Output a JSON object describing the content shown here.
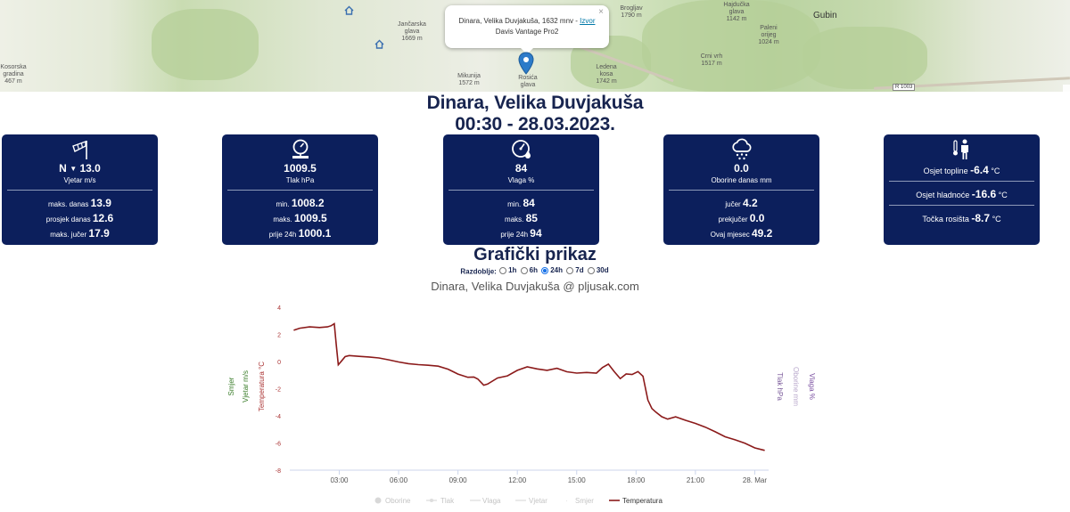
{
  "map": {
    "places": [
      {
        "name": "Jančarska",
        "extra": "glava",
        "elev": "1669 m"
      },
      {
        "name": "Mikunija",
        "extra": "",
        "elev": "1572 m"
      },
      {
        "name": "Rosića",
        "extra": "glava",
        "elev": ""
      },
      {
        "name": "Ledena",
        "extra": "kosa",
        "elev": "1742 m"
      },
      {
        "name": "Brogljav",
        "extra": "",
        "elev": "1790 m"
      },
      {
        "name": "Hajdučka",
        "extra": "glava",
        "elev": "1142 m"
      },
      {
        "name": "Paleni",
        "extra": "orijeg",
        "elev": "1024 m"
      },
      {
        "name": "Crni vrh",
        "extra": "",
        "elev": "1517 m"
      },
      {
        "name": "Kosorska",
        "extra": "gradina",
        "elev": "467 m"
      }
    ],
    "town": "Gubin",
    "road_sign": "R 1003",
    "elev_small": "1674 m",
    "popup": {
      "line1": "Dinara, Velika Duvjakuša, 1632 mnv - ",
      "link": "Izvor",
      "line2": "Davis Vantage Pro2",
      "close": "×"
    }
  },
  "station": {
    "name": "Dinara, Velika Duvjakuša",
    "datetime": "00:30 - 28.03.2023."
  },
  "cards": {
    "wind": {
      "direction": "N",
      "value": "13.0",
      "label": "Vjetar m/s",
      "rows": [
        {
          "label": "maks. danas",
          "value": "13.9"
        },
        {
          "label": "prosjek danas",
          "value": "12.6"
        },
        {
          "label": "maks. jučer",
          "value": "17.9"
        }
      ]
    },
    "pressure": {
      "value": "1009.5",
      "label": "Tlak hPa",
      "rows": [
        {
          "label": "min.",
          "value": "1008.2"
        },
        {
          "label": "maks.",
          "value": "1009.5"
        },
        {
          "label": "prije 24h",
          "value": "1000.1"
        }
      ]
    },
    "humidity": {
      "value": "84",
      "label": "Vlaga %",
      "rows": [
        {
          "label": "min.",
          "value": "84"
        },
        {
          "label": "maks.",
          "value": "85"
        },
        {
          "label": "prije 24h",
          "value": "94"
        }
      ]
    },
    "rain": {
      "value": "0.0",
      "label": "Oborine danas mm",
      "rows": [
        {
          "label": "jučer",
          "value": "4.2"
        },
        {
          "label": "prekjučer",
          "value": "0.0"
        },
        {
          "label": "Ovaj mjesec",
          "value": "49.2"
        }
      ]
    },
    "feel": {
      "rows": [
        {
          "label": "Osjet topline",
          "value": "-6.4",
          "unit": "°C"
        },
        {
          "label": "Osjet hladnoće",
          "value": "-16.6",
          "unit": "°C"
        },
        {
          "label": "Točka rosišta",
          "value": "-8.7",
          "unit": "°C"
        }
      ]
    }
  },
  "graph_section": {
    "heading": "Grafički prikaz",
    "period_label": "Razdoblje:",
    "period_options": [
      "1h",
      "6h",
      "24h",
      "7d",
      "30d"
    ],
    "period_selected": "24h"
  },
  "chart_data": {
    "type": "line",
    "title": "Dinara, Velika Duvjakuša @ pljusak.com",
    "ylabel_left": [
      "Smjer",
      "Vjetar m/s",
      "Temperatura °C"
    ],
    "ylabel_right": [
      "Tlak hPa",
      "Oborine mm",
      "Vlaga %"
    ],
    "yticks": [
      "4",
      "2",
      "0",
      "-2",
      "-4",
      "-6",
      "-8"
    ],
    "ylim": [
      -8,
      4
    ],
    "xlim": [
      0.5,
      24.7
    ],
    "xticks": [
      {
        "x": 3,
        "label": "03:00"
      },
      {
        "x": 6,
        "label": "06:00"
      },
      {
        "x": 9,
        "label": "09:00"
      },
      {
        "x": 12,
        "label": "12:00"
      },
      {
        "x": 15,
        "label": "15:00"
      },
      {
        "x": 18,
        "label": "18:00"
      },
      {
        "x": 21,
        "label": "21:00"
      },
      {
        "x": 24,
        "label": "28. Mar"
      }
    ],
    "legend": [
      "Oborine",
      "Tlak",
      "Vlaga",
      "Vjetar",
      "Smjer",
      "Temperatura"
    ],
    "colors": {
      "temperature": "#8b1a1a",
      "wind": "#3a7d2a",
      "humidity": "#7a4fa0",
      "pressure": "#7a5a9a",
      "axis_left": "#a33"
    },
    "series": [
      {
        "name": "Temperatura",
        "x": [
          0.7,
          1.0,
          1.5,
          2.0,
          2.4,
          2.6,
          2.75,
          2.85,
          2.95,
          3.1,
          3.3,
          3.5,
          4.0,
          4.5,
          5.0,
          5.5,
          6.0,
          6.5,
          7.0,
          7.5,
          8.0,
          8.5,
          9.0,
          9.5,
          9.8,
          10.0,
          10.3,
          10.5,
          11.0,
          11.5,
          12.0,
          12.5,
          13.0,
          13.5,
          14.0,
          14.5,
          15.0,
          15.5,
          16.0,
          16.3,
          16.6,
          16.9,
          17.2,
          17.5,
          17.8,
          18.1,
          18.35,
          18.6,
          18.8,
          19.0,
          19.3,
          19.6,
          20.0,
          20.5,
          21.0,
          21.5,
          22.0,
          22.5,
          23.0,
          23.5,
          24.0,
          24.5
        ],
        "y": [
          2.3,
          2.4,
          2.5,
          2.5,
          2.6,
          2.7,
          2.8,
          1.2,
          -0.3,
          0.0,
          0.4,
          0.5,
          0.4,
          0.3,
          0.2,
          0.1,
          0.0,
          -0.1,
          -0.2,
          -0.3,
          -0.4,
          -0.6,
          -0.9,
          -1.1,
          -1.1,
          -1.3,
          -1.8,
          -1.7,
          -1.2,
          -1.0,
          -0.6,
          -0.4,
          -0.6,
          -0.7,
          -0.5,
          -0.7,
          -0.8,
          -0.8,
          -0.9,
          -0.5,
          -0.2,
          -0.7,
          -1.2,
          -0.9,
          -1.0,
          -0.8,
          -1.1,
          -2.8,
          -3.4,
          -3.7,
          -4.1,
          -4.3,
          -4.1,
          -4.3,
          -4.5,
          -4.8,
          -5.2,
          -5.6,
          -5.8,
          -6.0,
          -6.3,
          -6.5
        ]
      }
    ]
  }
}
